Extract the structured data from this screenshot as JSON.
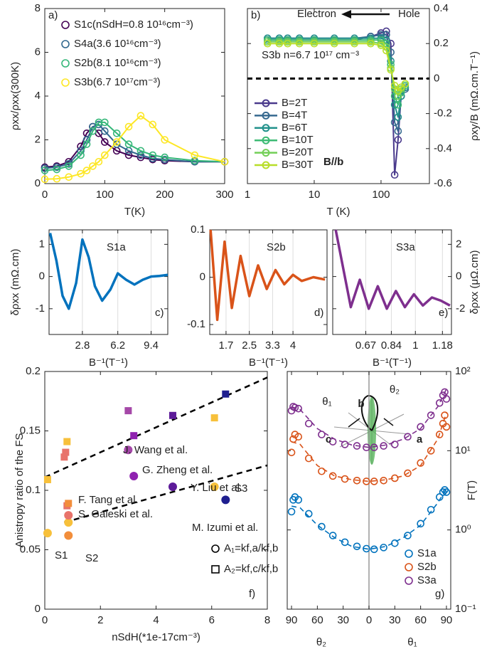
{
  "chart_data": [
    {
      "type": "line",
      "xlabel": "T(K)",
      "ylabel": "ρxx/ρxx(300K)",
      "xlim": [
        0,
        300
      ],
      "xticks": [
        0,
        100,
        200,
        300
      ],
      "ylim": [
        0,
        8
      ],
      "yticks": [
        0,
        2,
        4,
        6,
        8
      ],
      "marker": "circle",
      "legend": "upper left",
      "x": [
        0,
        20,
        40,
        60,
        70,
        80,
        90,
        100,
        120,
        140,
        160,
        180,
        200,
        250,
        300
      ],
      "series": [
        {
          "name": "S1c(nSdH=0.8 10¹⁶cm⁻³)",
          "color": "#440154",
          "values": [
            0.75,
            0.8,
            1.0,
            1.7,
            2.3,
            2.6,
            2.3,
            1.9,
            1.5,
            1.3,
            1.2,
            1.1,
            1.05,
            1.0,
            1.0
          ]
        },
        {
          "name": "S4a(3.6 10¹⁶cm⁻³)",
          "color": "#31688e",
          "values": [
            0.7,
            0.75,
            0.9,
            1.5,
            2.0,
            2.6,
            2.7,
            2.4,
            1.8,
            1.5,
            1.3,
            1.15,
            1.1,
            1.0,
            1.0
          ]
        },
        {
          "name": "S2b(8.1 10¹⁶cm⁻³)",
          "color": "#35b779",
          "values": [
            0.6,
            0.65,
            0.8,
            1.3,
            1.8,
            2.4,
            2.8,
            2.8,
            2.3,
            1.8,
            1.5,
            1.3,
            1.2,
            1.05,
            1.0
          ]
        },
        {
          "name": "S3b(6.7 10¹⁷cm⁻³)",
          "color": "#fde725",
          "values": [
            0.2,
            0.22,
            0.3,
            0.45,
            0.6,
            0.8,
            1.0,
            1.3,
            1.9,
            2.6,
            3.1,
            2.7,
            2.0,
            1.3,
            1.0
          ]
        }
      ],
      "annotations": [
        {
          "text": "a)"
        }
      ]
    },
    {
      "type": "line",
      "xlabel": "T (K)",
      "ylabel": "ρxy/B (mΩ.cm.T⁻¹)",
      "xscale": "log",
      "y_axis_side": "right",
      "xlim": [
        1,
        530
      ],
      "xticks": [
        1,
        10,
        100
      ],
      "ylim": [
        -0.6,
        0.4
      ],
      "yticks": [
        -0.6,
        -0.4,
        -0.2,
        0,
        0.2,
        0.4
      ],
      "hline": 0,
      "marker": "circle",
      "legend": "lower left",
      "x": [
        2,
        3,
        4,
        6,
        10,
        20,
        40,
        70,
        100,
        120,
        140,
        160,
        180,
        200,
        230
      ],
      "series": [
        {
          "name": "B=2T",
          "color": "#4a3a8c",
          "values": [
            0.22,
            0.22,
            0.22,
            0.22,
            0.22,
            0.22,
            0.22,
            0.24,
            0.26,
            0.27,
            0.2,
            -0.55,
            -0.35,
            -0.1,
            -0.05
          ]
        },
        {
          "name": "B=4T",
          "color": "#36698f",
          "values": [
            0.23,
            0.23,
            0.23,
            0.23,
            0.23,
            0.23,
            0.23,
            0.24,
            0.25,
            0.25,
            0.15,
            -0.25,
            -0.3,
            -0.1,
            -0.06
          ]
        },
        {
          "name": "B=6T",
          "color": "#23928c",
          "values": [
            0.23,
            0.23,
            0.23,
            0.23,
            0.23,
            0.23,
            0.23,
            0.23,
            0.23,
            0.22,
            0.1,
            -0.15,
            -0.22,
            -0.1,
            -0.05
          ]
        },
        {
          "name": "B=10T",
          "color": "#3dbb74",
          "values": [
            0.22,
            0.22,
            0.22,
            0.22,
            0.22,
            0.22,
            0.22,
            0.22,
            0.22,
            0.2,
            0.08,
            -0.1,
            -0.15,
            -0.08,
            -0.04
          ]
        },
        {
          "name": "B=20T",
          "color": "#72cf56",
          "values": [
            0.21,
            0.21,
            0.21,
            0.21,
            0.21,
            0.21,
            0.21,
            0.21,
            0.2,
            0.18,
            0.06,
            -0.06,
            -0.1,
            -0.06,
            -0.03
          ]
        },
        {
          "name": "B=30T",
          "color": "#b8de29",
          "values": [
            0.2,
            0.2,
            0.2,
            0.2,
            0.2,
            0.2,
            0.2,
            0.2,
            0.19,
            0.16,
            0.05,
            -0.04,
            -0.07,
            -0.05,
            -0.03
          ]
        }
      ],
      "annotations": [
        {
          "text": "b)"
        },
        {
          "text": "Electron"
        },
        {
          "text": "Hole"
        },
        {
          "text": "S3b n=6.7 10¹⁷ cm⁻³"
        },
        {
          "text": "B//b"
        }
      ]
    },
    {
      "type": "line",
      "xlabel": "B⁻¹(T⁻¹)",
      "ylabel": "δρxx (mΩ.cm)",
      "grid": "x",
      "xlim": [
        -0.4,
        11
      ],
      "xticks": [
        2.8,
        6.2,
        9.4
      ],
      "ylim": [
        -1.8,
        1.45
      ],
      "yticks": [
        -1,
        0,
        1
      ],
      "x": [
        -0.3,
        0.3,
        0.9,
        1.5,
        2.2,
        2.8,
        3.4,
        4.0,
        4.7,
        5.5,
        6.2,
        7.0,
        7.8,
        8.6,
        9.4,
        10.2,
        11
      ],
      "series": [
        {
          "color": "#0072bd",
          "values": [
            1.35,
            0.5,
            -0.6,
            -1.0,
            -0.2,
            1.15,
            0.6,
            -0.3,
            -0.75,
            -0.4,
            0.1,
            -0.1,
            -0.25,
            -0.1,
            0,
            0.02,
            0.05
          ]
        }
      ],
      "annotations": [
        {
          "text": "S1a"
        },
        {
          "text": "c)"
        }
      ]
    },
    {
      "type": "line",
      "xlabel": "B⁻¹(T⁻¹)",
      "grid": "x",
      "xlim": [
        1.14,
        5.17
      ],
      "xticks": [
        1.7,
        2.5,
        3.3,
        4
      ],
      "ylim": [
        -0.121,
        0.1
      ],
      "yticks": [
        -0.1,
        0,
        0.1
      ],
      "x": [
        1.17,
        1.4,
        1.65,
        1.9,
        2.2,
        2.5,
        2.8,
        3.1,
        3.4,
        3.7,
        4.0,
        4.3,
        4.7,
        5.1
      ],
      "series": [
        {
          "color": "#d95319",
          "values": [
            0.1,
            -0.09,
            0.075,
            -0.065,
            0.045,
            -0.04,
            0.025,
            -0.025,
            0.015,
            -0.015,
            0.005,
            -0.008,
            0.0,
            -0.005
          ]
        }
      ],
      "annotations": [
        {
          "text": "S2b"
        },
        {
          "text": "d)"
        }
      ]
    },
    {
      "type": "line",
      "xlabel": "B⁻¹(T⁻¹)",
      "ylabel": "δρxx (μΩ.cm)",
      "grid": "x",
      "y_axis_side": "right",
      "xlim": [
        0.45,
        1.24
      ],
      "xticks": [
        0.67,
        0.84,
        1,
        1.18
      ],
      "ylim": [
        -3.6,
        2.9
      ],
      "yticks": [
        -2,
        0,
        2
      ],
      "x": [
        0.47,
        0.52,
        0.57,
        0.63,
        0.69,
        0.75,
        0.81,
        0.87,
        0.93,
        0.99,
        1.05,
        1.11,
        1.17,
        1.23
      ],
      "series": [
        {
          "color": "#7e2f8e",
          "values": [
            2.9,
            0.5,
            -1.9,
            -0.2,
            -2.0,
            -0.6,
            -2.0,
            -0.9,
            -1.9,
            -1.1,
            -1.8,
            -1.3,
            -1.5,
            -1.8
          ]
        }
      ],
      "annotations": [
        {
          "text": "S3a"
        },
        {
          "text": "e)"
        }
      ]
    },
    {
      "type": "scatter",
      "xlabel": "nSdH(*1e-17cm⁻³)",
      "ylabel": "Anistropy ratio of the FS",
      "xlim": [
        0,
        8
      ],
      "xticks": [
        0,
        2,
        4,
        6,
        8
      ],
      "ylim": [
        0,
        0.2
      ],
      "yticks": [
        0,
        0.05,
        0.1,
        0.15,
        0.2
      ],
      "legend": "lower right",
      "filled": true,
      "series": [
        {
          "name": "A₁=kf,a/kf,b",
          "marker": "circle",
          "x": [
            0.1,
            0.85,
            0.85,
            0.85,
            3.0,
            3.2,
            4.6,
            6.1,
            6.5
          ],
          "values": [
            0.064,
            0.073,
            0.079,
            0.062,
            0.134,
            0.112,
            0.103,
            0.103,
            0.092
          ],
          "colors": [
            "#f7c03b",
            "#f7c03b",
            "#e8736b",
            "#f28e3b",
            "#a548a8",
            "#8f22b0",
            "#5d1b99",
            "#f7c03b",
            "#1f1f8f"
          ]
        },
        {
          "name": "A₂=kf,c/kf,b",
          "marker": "square",
          "x": [
            0.1,
            0.7,
            0.75,
            0.8,
            0.8,
            0.85,
            3.0,
            3.2,
            4.6,
            6.1,
            6.5
          ],
          "values": [
            0.109,
            0.128,
            0.132,
            0.141,
            0.087,
            0.089,
            0.167,
            0.146,
            0.163,
            0.161,
            0.181
          ],
          "colors": [
            "#f7c03b",
            "#e8736b",
            "#e8736b",
            "#f7c03b",
            "#e8736b",
            "#f28e3b",
            "#a548a8",
            "#8f22b0",
            "#5d1b99",
            "#f7c03b",
            "#1f1f8f"
          ]
        }
      ],
      "fit_lines": [
        {
          "x": [
            0,
            8
          ],
          "values": [
            0.111,
            0.195
          ]
        },
        {
          "x": [
            0.7,
            8
          ],
          "values": [
            0.073,
            0.121
          ]
        }
      ],
      "annotations": [
        {
          "text": "J. Wang et al.",
          "color": "#a548a8"
        },
        {
          "text": "G. Zheng et al.",
          "color": "#8f22b0"
        },
        {
          "text": "Y. Liu et al.",
          "color": "#5d1b99"
        },
        {
          "text": "M. Izumi et al.",
          "color": "#1f1f8f"
        },
        {
          "text": "F. Tang et al.",
          "color": "#e8736b"
        },
        {
          "text": "S. Galeski et al.",
          "color": "#f28e3b"
        },
        {
          "text": "S3",
          "color": "#f7c03b"
        },
        {
          "text": "S1",
          "color": "#f7c03b"
        },
        {
          "text": "S2",
          "color": "#f7c03b"
        },
        {
          "text": "f)"
        }
      ]
    },
    {
      "type": "scatter",
      "ylabel": "F(T)",
      "yscale": "log",
      "y_axis_side": "right",
      "vline": 0,
      "legend": "lower right",
      "xlim": [
        -95,
        95
      ],
      "xticks": [
        {
          "value": -90,
          "label": "90"
        },
        {
          "value": -60,
          "label": "60"
        },
        {
          "value": -30,
          "label": "30"
        },
        0,
        30,
        60,
        90
      ],
      "ylim": [
        0.1,
        100
      ],
      "yticks": [
        {
          "value": 0.1,
          "label": "10⁻¹"
        },
        {
          "value": 1,
          "label": "10⁰"
        },
        {
          "value": 10,
          "label": "10¹"
        },
        {
          "value": 100,
          "label": "10²"
        }
      ],
      "x": [
        -90,
        -88,
        -86,
        -82,
        -70,
        -55,
        -42,
        -28,
        -14,
        -3,
        6,
        17,
        30,
        45,
        60,
        72,
        82,
        86,
        88,
        90
      ],
      "fit_x": [
        -90,
        -80,
        -60,
        -40,
        -20,
        0,
        20,
        40,
        60,
        80,
        90
      ],
      "series": [
        {
          "name": "S1a",
          "color": "#0072bd",
          "marker": "circle",
          "values": [
            1.7,
            2.4,
            2.6,
            2.4,
            1.6,
            1.1,
            0.85,
            0.7,
            0.62,
            0.58,
            0.57,
            0.6,
            0.68,
            0.85,
            1.2,
            1.8,
            2.6,
            3.0,
            3.2,
            3.0
          ],
          "fit": [
            2.0,
            1.9,
            1.15,
            0.8,
            0.62,
            0.57,
            0.62,
            0.8,
            1.15,
            2.2,
            3.3
          ]
        },
        {
          "name": "S2b",
          "color": "#d95319",
          "marker": "circle",
          "values": [
            9.5,
            14,
            16,
            15,
            8,
            5.5,
            4.8,
            4.4,
            4.2,
            4.1,
            4.1,
            4.2,
            4.5,
            5.2,
            7,
            10,
            16,
            22,
            28,
            20
          ],
          "fit": [
            13,
            12,
            6.5,
            4.8,
            4.3,
            4.1,
            4.3,
            4.8,
            6.5,
            14,
            30
          ]
        },
        {
          "name": "S3a",
          "color": "#7e2f8e",
          "marker": "circle",
          "values": [
            32,
            36,
            35,
            34,
            22,
            16,
            13,
            12,
            11.5,
            11,
            11,
            11.5,
            12,
            15,
            20,
            28,
            40,
            50,
            55,
            45
          ],
          "fit": [
            36,
            33,
            19,
            14,
            11.8,
            11,
            11.8,
            14,
            19,
            36,
            60
          ]
        }
      ],
      "annotations": [
        {
          "text": "g)"
        },
        {
          "text": "θ₂"
        },
        {
          "text": "θ₁"
        },
        {
          "text": "b"
        },
        {
          "text": "c"
        },
        {
          "text": "a"
        },
        {
          "text": "θ₁"
        },
        {
          "text": "θ₂"
        }
      ]
    }
  ]
}
